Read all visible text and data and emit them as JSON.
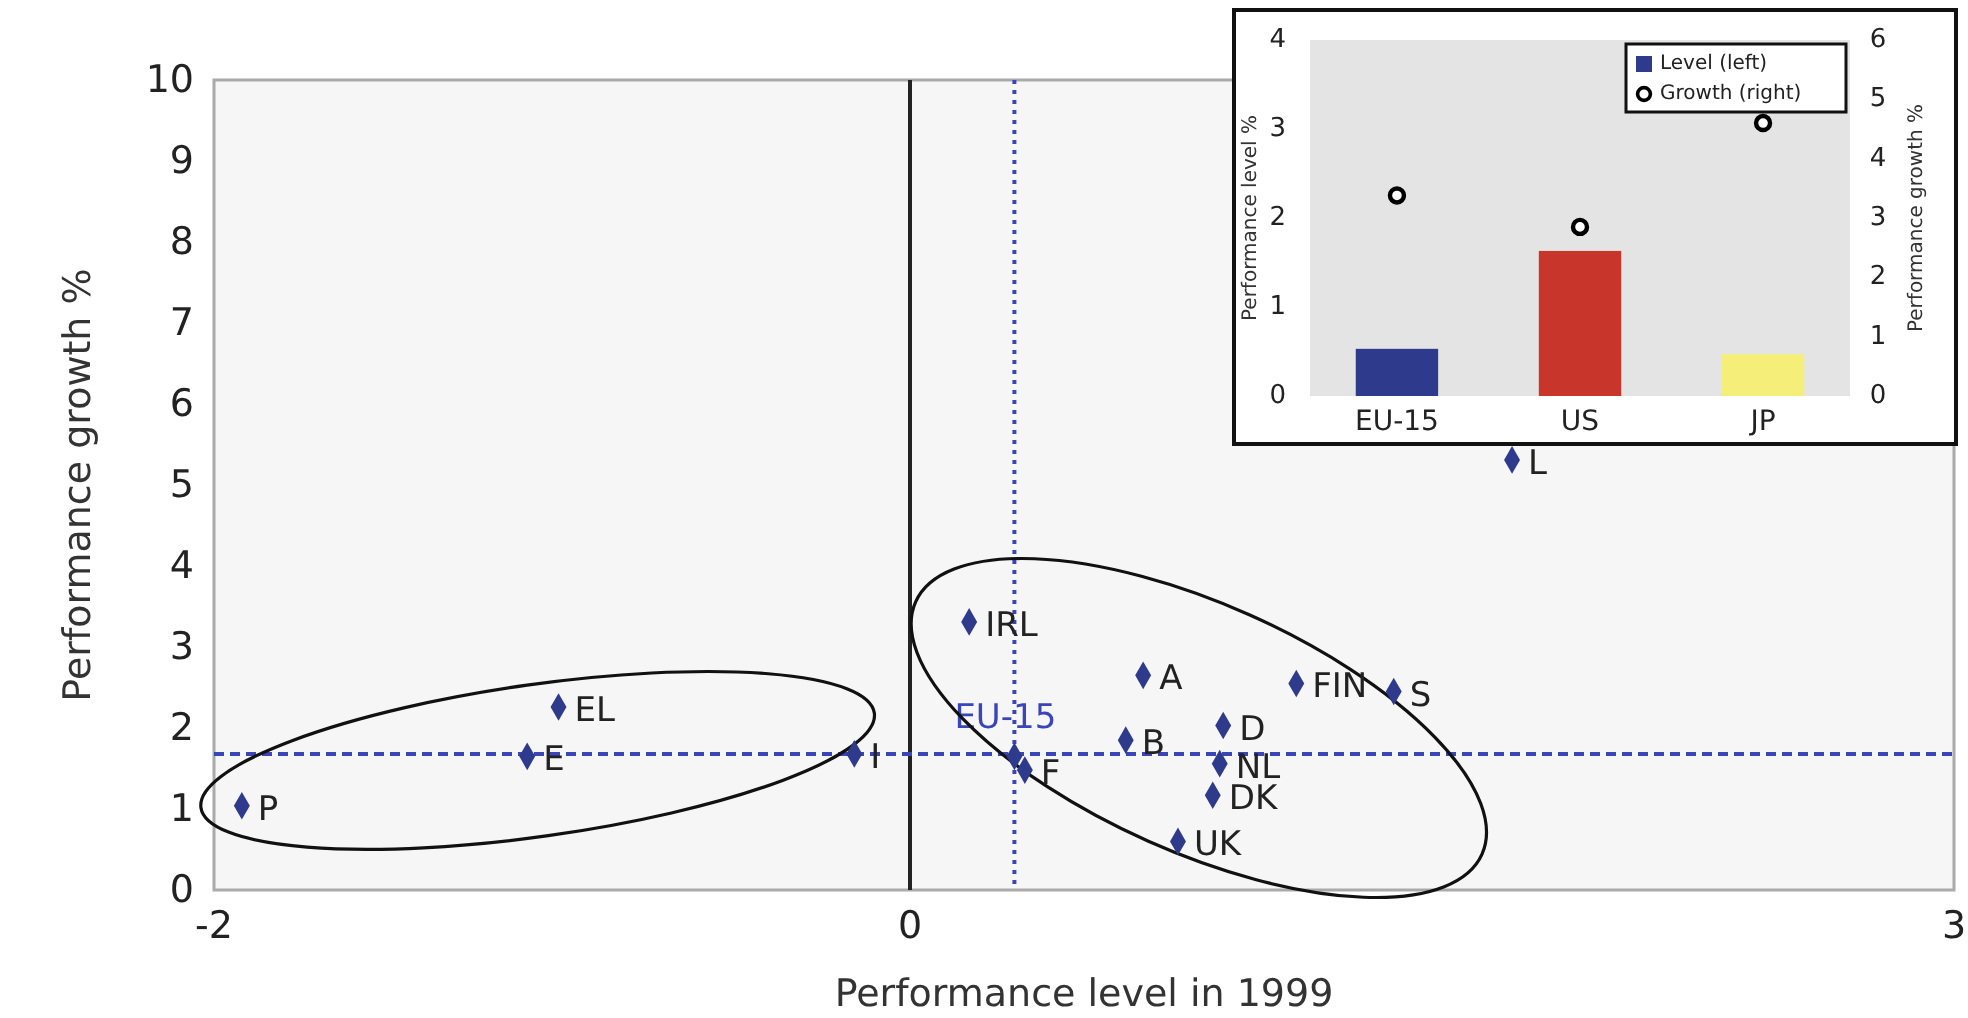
{
  "chart_data": [
    {
      "type": "scatter",
      "xlabel": "Performance level in 1999",
      "ylabel": "Performance growth %",
      "x": [
        -1.92,
        -1.1,
        -1.01,
        -0.16,
        0.17,
        0.3,
        0.33,
        0.62,
        0.67,
        0.77,
        0.87,
        0.89,
        0.9,
        1.11,
        1.39,
        1.73
      ],
      "values": [
        1.04,
        1.65,
        2.26,
        1.68,
        3.31,
        1.65,
        1.48,
        1.85,
        2.65,
        0.6,
        1.17,
        1.56,
        2.03,
        2.55,
        2.45,
        5.31
      ],
      "color": "#2e3a8c",
      "marker": "diamond",
      "xlim": [
        -2,
        3
      ],
      "xticks": [
        -2,
        0,
        3
      ],
      "ylim": [
        0,
        10
      ],
      "yticks": [
        0,
        1,
        2,
        3,
        4,
        5,
        6,
        7,
        8,
        9,
        10
      ],
      "grid": false,
      "ref_lines": [
        {
          "axis": "x",
          "value": 0,
          "color": "#222222",
          "line_style": "solid"
        },
        {
          "axis": "x",
          "value": 0.3,
          "label": "EU-15",
          "color": "#3a46b8",
          "line_style": "dotted"
        },
        {
          "axis": "y",
          "value": 1.68,
          "color": "#3a46b8",
          "line_style": "dashed"
        }
      ],
      "annotations": [
        {
          "text": "P",
          "x": -1.92,
          "y": 1.04
        },
        {
          "text": "E",
          "x": -1.1,
          "y": 1.65
        },
        {
          "text": "EL",
          "x": -1.01,
          "y": 2.26
        },
        {
          "text": "I",
          "x": -0.16,
          "y": 1.68
        },
        {
          "text": "IRL",
          "x": 0.17,
          "y": 3.31
        },
        {
          "text": "F",
          "x": 0.33,
          "y": 1.48
        },
        {
          "text": "B",
          "x": 0.62,
          "y": 1.85
        },
        {
          "text": "A",
          "x": 0.67,
          "y": 2.65
        },
        {
          "text": "UK",
          "x": 0.77,
          "y": 0.6
        },
        {
          "text": "DK",
          "x": 0.87,
          "y": 1.17
        },
        {
          "text": "NL",
          "x": 0.89,
          "y": 1.56
        },
        {
          "text": "D",
          "x": 0.9,
          "y": 2.03
        },
        {
          "text": "FIN",
          "x": 1.11,
          "y": 2.55
        },
        {
          "text": "S",
          "x": 1.39,
          "y": 2.45
        },
        {
          "text": "L",
          "x": 1.73,
          "y": 5.31
        }
      ]
    },
    {
      "type": "bar",
      "categories": [
        "EU-15",
        "US",
        "JP"
      ],
      "ylabel": "Performance level %",
      "y2label": "Performance growth %",
      "series": [
        {
          "name": "Level (left)",
          "color": "#2e3a8c",
          "colors": [
            "#2e3a8c",
            "#c8352a",
            "#f5ef7a"
          ],
          "values": [
            0.53,
            1.63,
            0.47
          ]
        },
        {
          "name": "Growth (right)",
          "type": "scatter",
          "axis": "y2",
          "color": "#000000",
          "marker": "circle",
          "values": [
            3.38,
            2.85,
            4.6
          ]
        }
      ],
      "ylim": [
        0,
        4
      ],
      "yticks": [
        0,
        1,
        2,
        3,
        4
      ],
      "y2lim": [
        0,
        6
      ],
      "y2ticks": [
        0,
        1,
        2,
        3,
        4,
        5,
        6
      ],
      "legend": "top right"
    }
  ]
}
